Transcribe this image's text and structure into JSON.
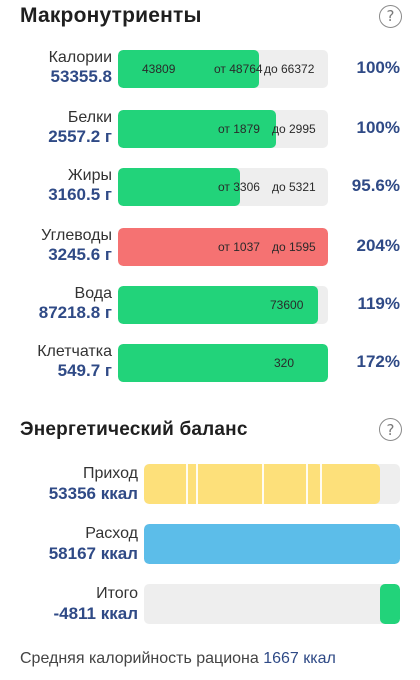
{
  "macros": {
    "title": "Макронутриенты",
    "help": "?",
    "rows": [
      {
        "name": "Калории",
        "value": "53355.8",
        "percent": "100%",
        "fill_fraction": 0.67,
        "color": "green",
        "labels": {
          "left": "43809",
          "range_from": "от 48764",
          "range_to": "до 66372"
        }
      },
      {
        "name": "Белки",
        "value": "2557.2 г",
        "percent": "100%",
        "fill_fraction": 0.75,
        "color": "green",
        "labels": {
          "left": "",
          "range_from": "от 1879",
          "range_to": "до 2995"
        }
      },
      {
        "name": "Жиры",
        "value": "3160.5 г",
        "percent": "95.6%",
        "fill_fraction": 0.58,
        "color": "green",
        "labels": {
          "left": "",
          "range_from": "от 3306",
          "range_to": "до 5321"
        }
      },
      {
        "name": "Углеводы",
        "value": "3245.6 г",
        "percent": "204%",
        "fill_fraction": 1.0,
        "color": "red",
        "labels": {
          "left": "",
          "range_from": "от 1037",
          "range_to": "до 1595"
        }
      },
      {
        "name": "Вода",
        "value": "87218.8 г",
        "percent": "119%",
        "fill_fraction": 0.95,
        "color": "green",
        "labels": {
          "left": "",
          "range_from": "73600",
          "range_to": ""
        }
      },
      {
        "name": "Клетчатка",
        "value": "549.7 г",
        "percent": "172%",
        "fill_fraction": 1.0,
        "color": "green",
        "labels": {
          "left": "",
          "range_from": "320",
          "range_to": ""
        }
      }
    ]
  },
  "energy": {
    "title": "Энергетический баланс",
    "help": "?",
    "rows": [
      {
        "name": "Приход",
        "value": "53356 ккал",
        "fill_fraction": 0.92,
        "color": "yellow",
        "align": "left"
      },
      {
        "name": "Расход",
        "value": "58167 ккал",
        "fill_fraction": 1.0,
        "color": "blue",
        "align": "left"
      },
      {
        "name": "Итого",
        "value": "-4811 ккал",
        "fill_fraction": 0.08,
        "color": "green",
        "align": "right"
      }
    ]
  },
  "footer": {
    "label": "Средняя калорийность рациона",
    "value": "1667 ккал"
  }
}
